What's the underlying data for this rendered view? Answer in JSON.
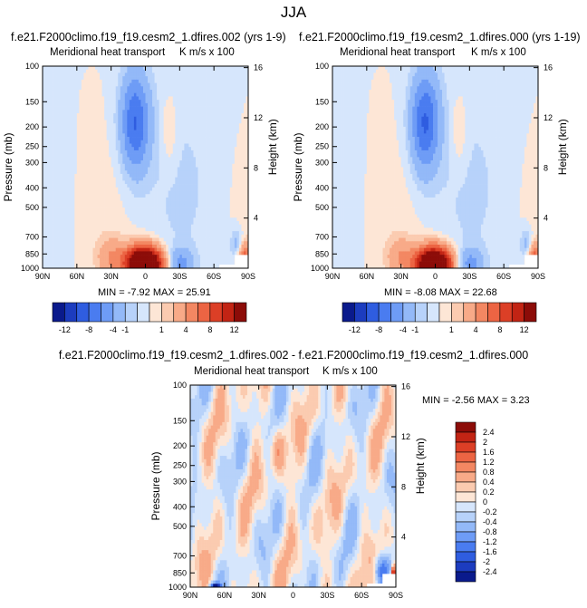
{
  "main_title": "JJA",
  "colors": {
    "neg": [
      "#0a1a8c",
      "#1c3cbf",
      "#2f5de0",
      "#4a7cf0",
      "#6e9cf6",
      "#93b9f8",
      "#b7d2fa",
      "#d6e6fc"
    ],
    "pos": [
      "#fde6d6",
      "#fbcbb0",
      "#f8aa88",
      "#f38762",
      "#ec6443",
      "#dc3f26",
      "#c22414",
      "#8c0c08"
    ],
    "background": "#ffffff"
  },
  "panels": [
    {
      "case_title": "f.e21.F2000climo.f19_f19.cesm2_1.dfires.002 (yrs 1-9)",
      "subtitle_left": "Meridional heat transport",
      "subtitle_right": "K m/s x 100",
      "stats": "MIN = -7.92  MAX = 25.91"
    },
    {
      "case_title": "f.e21.F2000climo.f19_f19.cesm2_1.dfires.000 (yrs 1-19)",
      "subtitle_left": "Meridional heat transport",
      "subtitle_right": "K m/s x 100",
      "stats": "MIN = -8.08  MAX = 22.68"
    },
    {
      "case_title": "f.e21.F2000climo.f19_f19.cesm2_1.dfires.002 - f.e21.F2000climo.f19_f19.cesm2_1.dfires.000",
      "subtitle_left": "Meridional heat transport",
      "subtitle_right": "K m/s x 100",
      "stats": "MIN = -2.56  MAX =  3.23"
    }
  ],
  "chart_data": [
    {
      "type": "heatmap",
      "xlabel": "",
      "ylabel": "Pressure (mb)",
      "y2label": "Height (km)",
      "x_ticks": [
        "90N",
        "60N",
        "30N",
        "0",
        "30S",
        "60S",
        "90S"
      ],
      "y_ticks": [
        100,
        150,
        200,
        250,
        300,
        400,
        500,
        700,
        850,
        1000
      ],
      "y2_ticks": [
        16,
        12,
        8,
        4
      ],
      "features": [
        {
          "lat": 9,
          "p": 190,
          "value": -7.9
        },
        {
          "lat": -21,
          "p": 210,
          "value": 1.5
        },
        {
          "lat": 0,
          "p": 960,
          "value": 25.9
        },
        {
          "lat": 28,
          "p": 880,
          "value": 3
        },
        {
          "lat": -30,
          "p": 950,
          "value": -4
        },
        {
          "lat": -85,
          "p": 880,
          "value": 6
        }
      ]
    },
    {
      "type": "heatmap",
      "xlabel": "",
      "ylabel": "Pressure (mb)",
      "y2label": "Height (km)",
      "x_ticks": [
        "90N",
        "60N",
        "30N",
        "0",
        "30S",
        "60S",
        "90S"
      ],
      "y_ticks": [
        100,
        150,
        200,
        250,
        300,
        400,
        500,
        700,
        850,
        1000
      ],
      "y2_ticks": [
        16,
        12,
        8,
        4
      ],
      "features": [
        {
          "lat": 9,
          "p": 190,
          "value": -8.1
        },
        {
          "lat": -21,
          "p": 210,
          "value": 1.3
        },
        {
          "lat": 0,
          "p": 960,
          "value": 22.7
        },
        {
          "lat": 28,
          "p": 880,
          "value": 3
        },
        {
          "lat": -30,
          "p": 950,
          "value": -4
        },
        {
          "lat": -85,
          "p": 880,
          "value": 5
        }
      ]
    },
    {
      "type": "heatmap",
      "xlabel": "",
      "ylabel": "Pressure (mb)",
      "y2label": "Height (km)",
      "x_ticks": [
        "90N",
        "60N",
        "30N",
        "0",
        "30S",
        "60S",
        "90S"
      ],
      "y_ticks": [
        100,
        150,
        200,
        250,
        300,
        400,
        500,
        700,
        850,
        1000
      ],
      "y2_ticks": [
        16,
        12,
        8,
        4
      ],
      "features": [
        {
          "lat": 13,
          "p": 210,
          "value": 0.6
        },
        {
          "lat": -88,
          "p": 880,
          "value": 3.2
        },
        {
          "lat": -75,
          "p": 820,
          "value": -1.2
        },
        {
          "lat": 68,
          "p": 1000,
          "value": -2.6
        }
      ]
    }
  ],
  "colorbars": {
    "top": {
      "orientation": "horizontal",
      "labels": [
        "-12",
        "-8",
        "-4",
        "-1",
        "1",
        "4",
        "8",
        "12"
      ]
    },
    "bottom": {
      "orientation": "vertical",
      "labels": [
        "2.4",
        "2",
        "1.6",
        "1.2",
        "0.8",
        "0.4",
        "0.2",
        "0",
        "-0.2",
        "-0.4",
        "-0.8",
        "-1.2",
        "-1.6",
        "-2",
        "-2.4"
      ]
    }
  }
}
